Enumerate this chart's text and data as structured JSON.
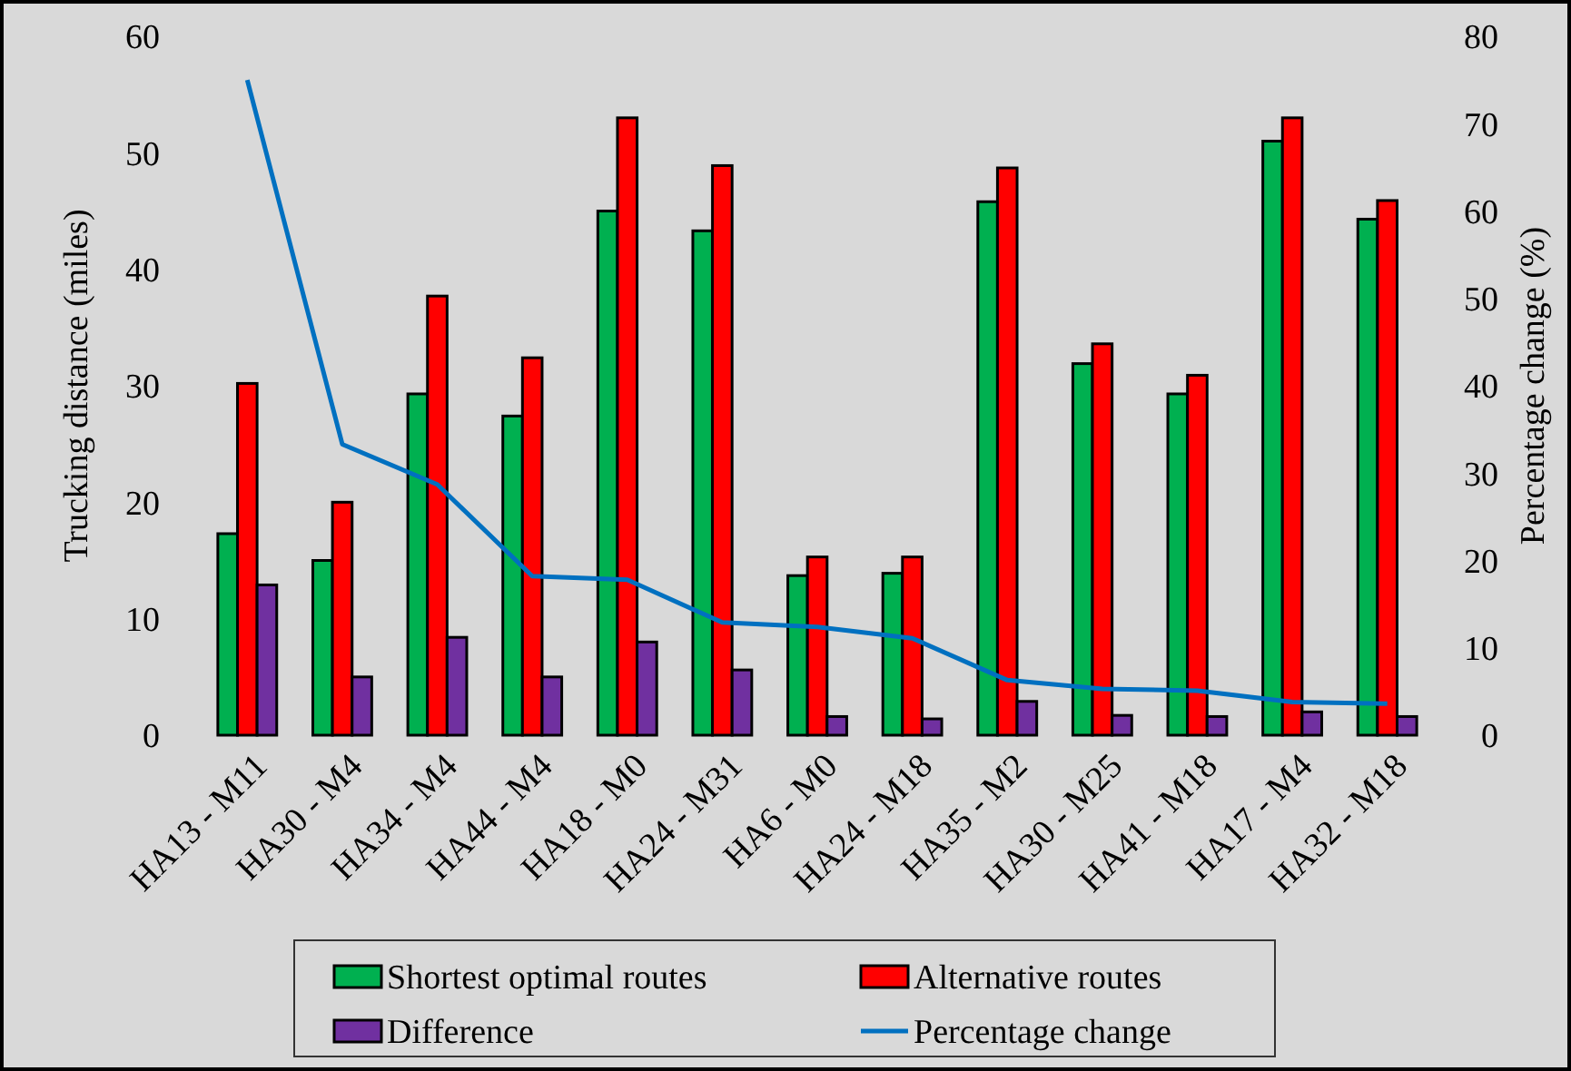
{
  "chart_data": {
    "type": "bar",
    "ylabel": "Trucking distance (miles)",
    "y2label": "Percentage change (%)",
    "categories": [
      "HA13 - M11",
      "HA30 - M4",
      "HA34 - M4",
      "HA44 - M4",
      "HA18 - M0",
      "HA24 - M31",
      "HA6 - M0",
      "HA24 - M18",
      "HA35 - M2",
      "HA30 - M25",
      "HA41 - M18",
      "HA17 - M4",
      "HA32 - M18"
    ],
    "series": [
      {
        "name": "Shortest optimal routes",
        "color": "#00b050",
        "values": [
          17.3,
          15,
          29.3,
          27.4,
          45,
          43.3,
          13.7,
          13.9,
          45.8,
          31.9,
          29.3,
          51,
          44.3
        ]
      },
      {
        "name": "Alternative routes",
        "color": "#ff0000",
        "values": [
          30.2,
          20,
          37.7,
          32.4,
          53,
          48.9,
          15.3,
          15.3,
          48.7,
          33.6,
          30.9,
          53,
          45.9
        ]
      },
      {
        "name": "Difference",
        "color": "#7030a0",
        "values": [
          12.9,
          5,
          8.4,
          5,
          8,
          5.6,
          1.6,
          1.4,
          2.9,
          1.7,
          1.6,
          2,
          1.6
        ]
      },
      {
        "name": "Percentage change",
        "type": "line",
        "axis": "y2",
        "color": "#0070c0",
        "values": [
          75,
          33.3,
          28.7,
          18.2,
          17.8,
          12.9,
          12.4,
          11.1,
          6.3,
          5.3,
          5.1,
          3.8,
          3.6
        ]
      }
    ],
    "ylim": [
      0,
      60
    ],
    "yticks": [
      0,
      10,
      20,
      30,
      40,
      50,
      60
    ],
    "y2lim": [
      0,
      80
    ],
    "y2ticks": [
      0,
      10,
      20,
      30,
      40,
      50,
      60,
      70,
      80
    ],
    "grid": false,
    "legend": "bottom",
    "marker": "none",
    "line_style": "solid"
  }
}
